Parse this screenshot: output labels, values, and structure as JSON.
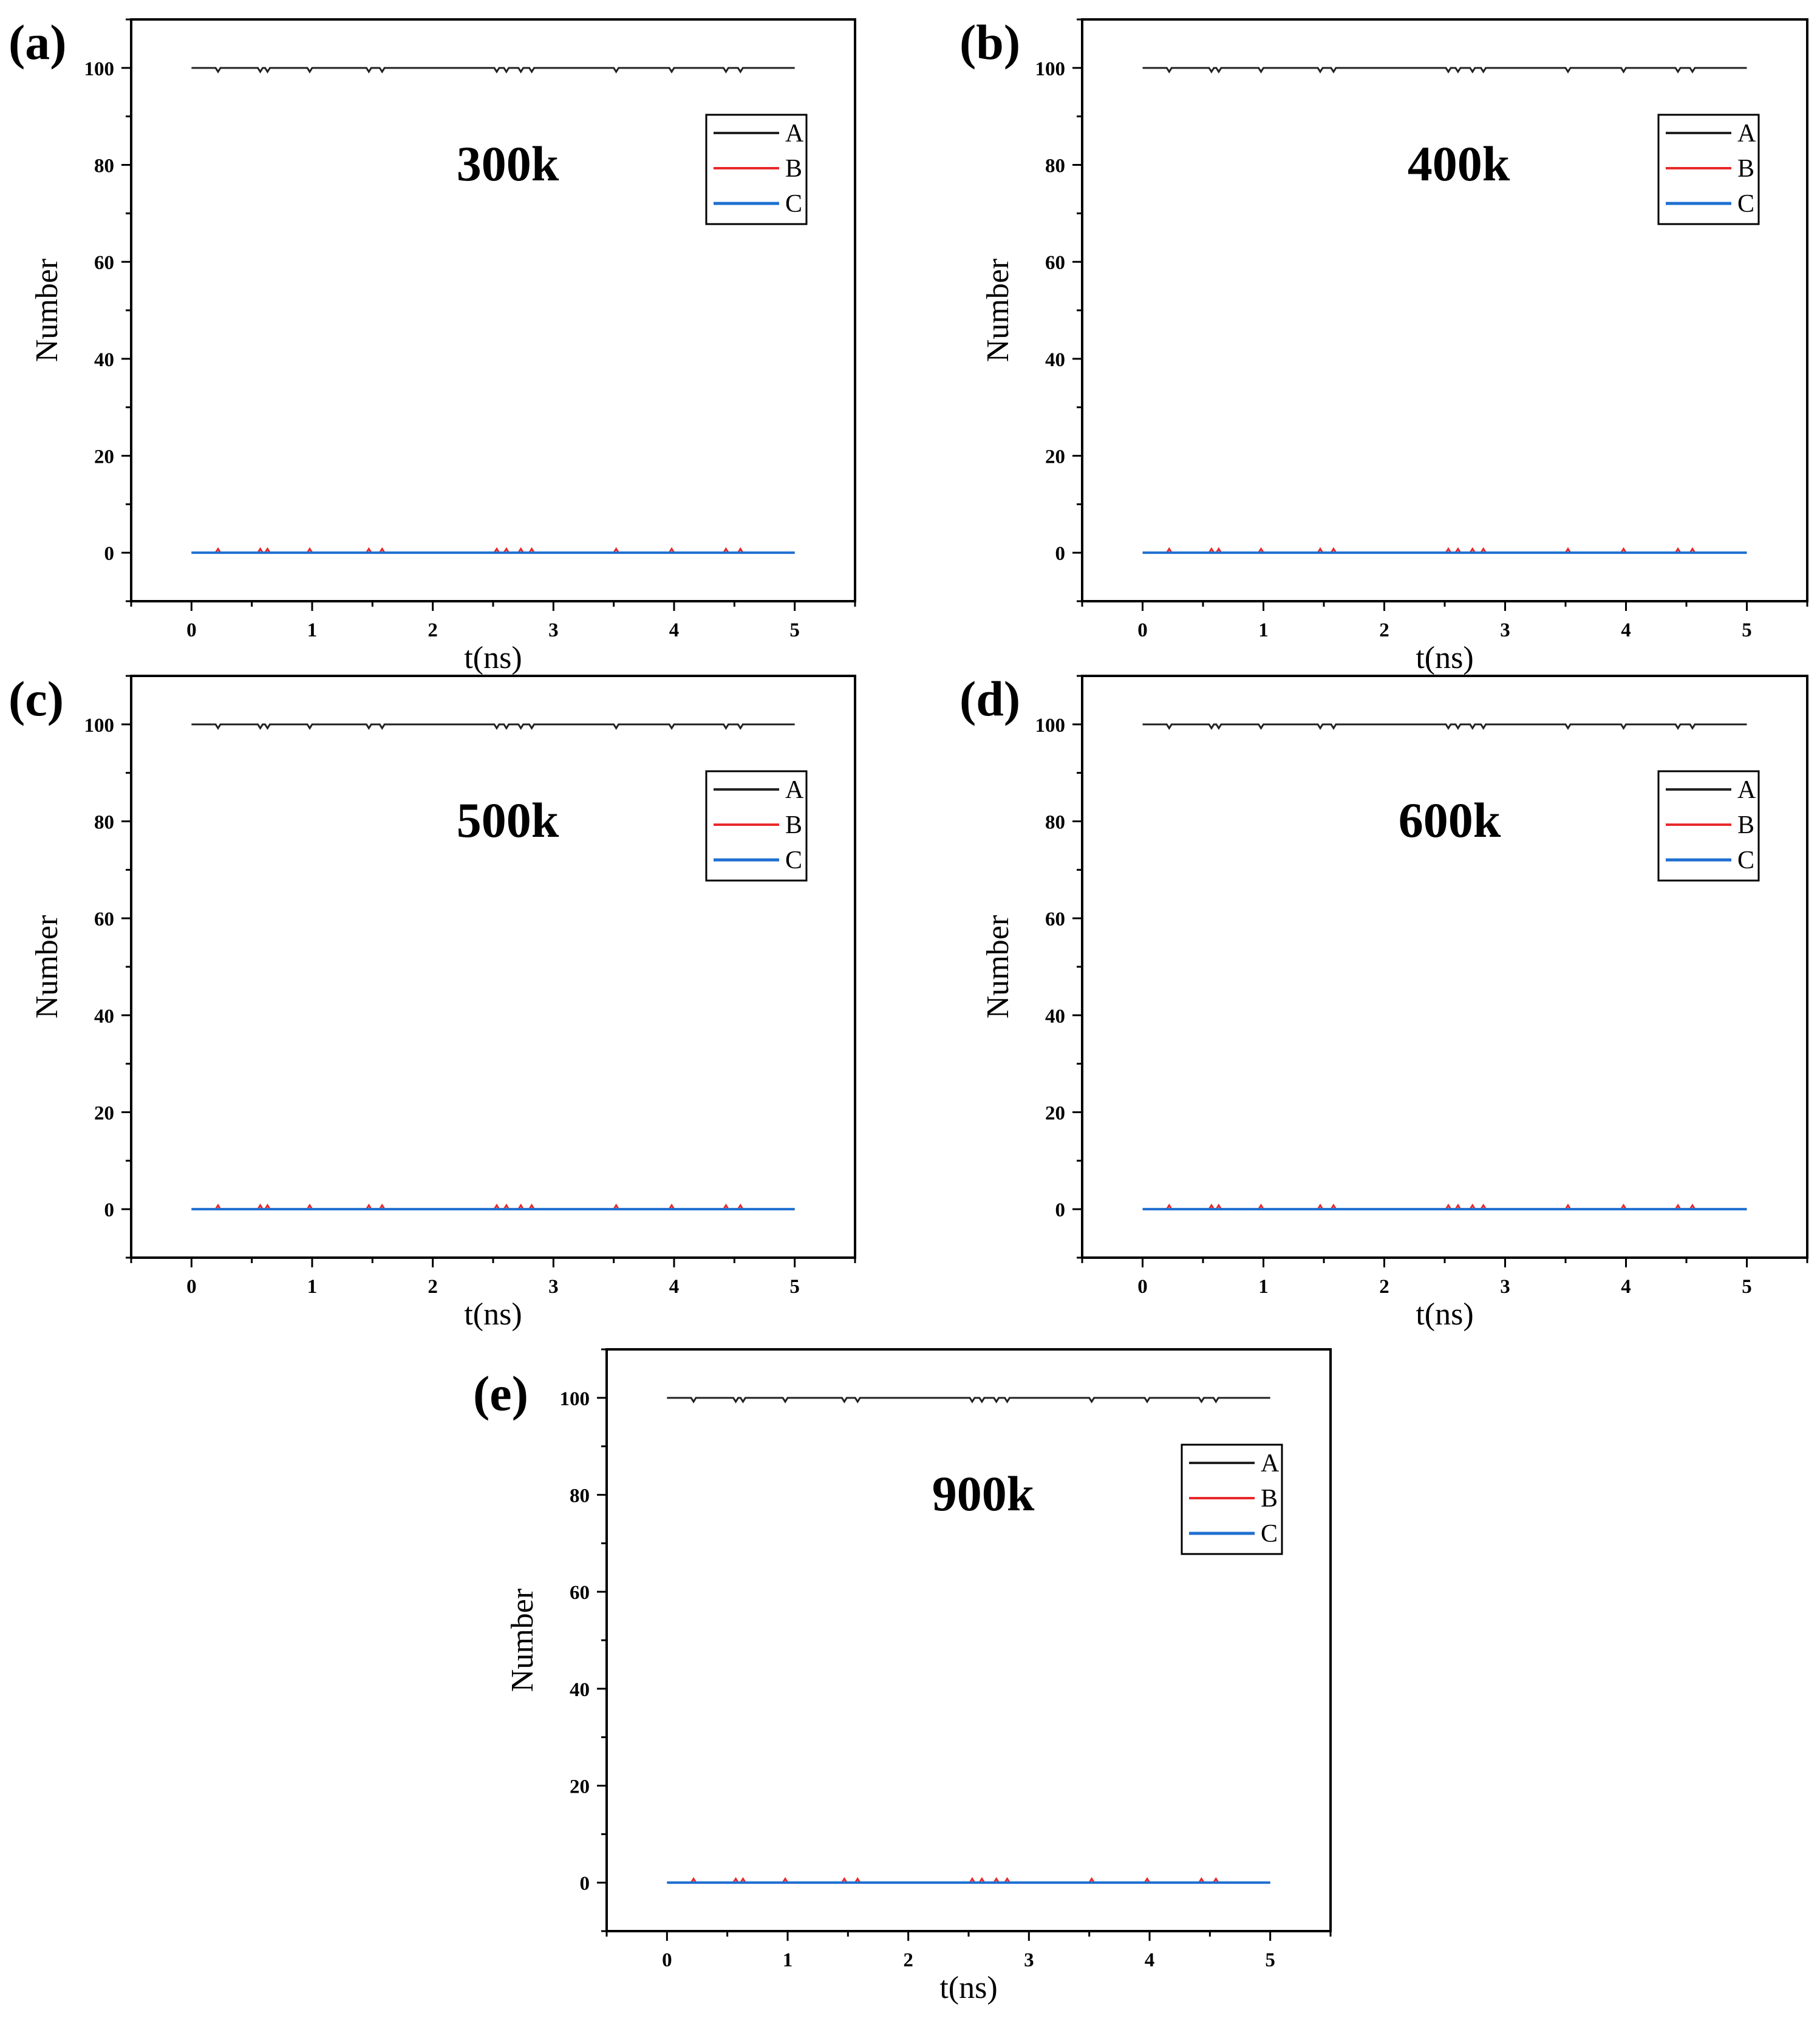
{
  "chart_data": [
    {
      "type": "line",
      "panel": "(a)",
      "annotation": "300k",
      "xlabel": "t(ns)",
      "ylabel": "Number",
      "xlim": [
        -0.5,
        5.5
      ],
      "ylim": [
        -10,
        110
      ],
      "xticks": [
        0,
        1,
        2,
        3,
        4,
        5
      ],
      "yticks": [
        0,
        20,
        40,
        60,
        80,
        100
      ],
      "legend": {
        "position": "top-right",
        "entries": [
          "A",
          "B",
          "C"
        ]
      },
      "series": [
        {
          "name": "A",
          "color": "#222222",
          "baseline": 100,
          "events": [
            0.22,
            0.57,
            0.63,
            0.98,
            1.47,
            1.58,
            2.53,
            2.61,
            2.73,
            2.82,
            3.52,
            3.98,
            4.43,
            4.55
          ],
          "deviation": -0.8
        },
        {
          "name": "B",
          "color": "#e8282a",
          "baseline": 0,
          "events": [
            0.22,
            0.57,
            0.63,
            0.98,
            1.47,
            1.58,
            2.53,
            2.61,
            2.73,
            2.82,
            3.52,
            3.98,
            4.43,
            4.55
          ],
          "deviation": 0.8
        },
        {
          "name": "C",
          "color": "#1f6fd1",
          "baseline": 0,
          "events": [],
          "deviation": 0
        }
      ]
    },
    {
      "type": "line",
      "panel": "(b)",
      "annotation": "400k",
      "xlabel": "t(ns)",
      "ylabel": "Number",
      "xlim": [
        -0.5,
        5.5
      ],
      "ylim": [
        -10,
        110
      ],
      "xticks": [
        0,
        1,
        2,
        3,
        4,
        5
      ],
      "yticks": [
        0,
        20,
        40,
        60,
        80,
        100
      ],
      "legend": {
        "position": "top-right",
        "entries": [
          "A",
          "B",
          "C"
        ]
      },
      "series": [
        {
          "name": "A",
          "color": "#222222",
          "baseline": 100,
          "events": [
            0.22,
            0.57,
            0.63,
            0.98,
            1.47,
            1.58,
            2.53,
            2.61,
            2.73,
            2.82,
            3.52,
            3.98,
            4.43,
            4.55
          ],
          "deviation": -0.8
        },
        {
          "name": "B",
          "color": "#e8282a",
          "baseline": 0,
          "events": [
            0.22,
            0.57,
            0.63,
            0.98,
            1.47,
            1.58,
            2.53,
            2.61,
            2.73,
            2.82,
            3.52,
            3.98,
            4.43,
            4.55
          ],
          "deviation": 0.8
        },
        {
          "name": "C",
          "color": "#1f6fd1",
          "baseline": 0,
          "events": [],
          "deviation": 0
        }
      ]
    },
    {
      "type": "line",
      "panel": "(c)",
      "annotation": "500k",
      "xlabel": "t(ns)",
      "ylabel": "Number",
      "xlim": [
        -0.5,
        5.5
      ],
      "ylim": [
        -10,
        110
      ],
      "xticks": [
        0,
        1,
        2,
        3,
        4,
        5
      ],
      "yticks": [
        0,
        20,
        40,
        60,
        80,
        100
      ],
      "legend": {
        "position": "top-right",
        "entries": [
          "A",
          "B",
          "C"
        ]
      },
      "series": [
        {
          "name": "A",
          "color": "#222222",
          "baseline": 100,
          "events": [
            0.22,
            0.57,
            0.63,
            0.98,
            1.47,
            1.58,
            2.53,
            2.61,
            2.73,
            2.82,
            3.52,
            3.98,
            4.43,
            4.55
          ],
          "deviation": -0.8
        },
        {
          "name": "B",
          "color": "#e8282a",
          "baseline": 0,
          "events": [
            0.22,
            0.57,
            0.63,
            0.98,
            1.47,
            1.58,
            2.53,
            2.61,
            2.73,
            2.82,
            3.52,
            3.98,
            4.43,
            4.55
          ],
          "deviation": 0.8
        },
        {
          "name": "C",
          "color": "#1f6fd1",
          "baseline": 0,
          "events": [],
          "deviation": 0
        }
      ]
    },
    {
      "type": "line",
      "panel": "(d)",
      "annotation": "600k",
      "xlabel": "t(ns)",
      "ylabel": "Number",
      "xlim": [
        -0.5,
        5.5
      ],
      "ylim": [
        -10,
        110
      ],
      "xticks": [
        0,
        1,
        2,
        3,
        4,
        5
      ],
      "yticks": [
        0,
        20,
        40,
        60,
        80,
        100
      ],
      "legend": {
        "position": "top-right",
        "entries": [
          "A",
          "B",
          "C"
        ]
      },
      "series": [
        {
          "name": "A",
          "color": "#222222",
          "baseline": 100,
          "events": [
            0.22,
            0.57,
            0.63,
            0.98,
            1.47,
            1.58,
            2.53,
            2.61,
            2.73,
            2.82,
            3.52,
            3.98,
            4.43,
            4.55
          ],
          "deviation": -0.8
        },
        {
          "name": "B",
          "color": "#e8282a",
          "baseline": 0,
          "events": [
            0.22,
            0.57,
            0.63,
            0.98,
            1.47,
            1.58,
            2.53,
            2.61,
            2.73,
            2.82,
            3.52,
            3.98,
            4.43,
            4.55
          ],
          "deviation": 0.8
        },
        {
          "name": "C",
          "color": "#1f6fd1",
          "baseline": 0,
          "events": [],
          "deviation": 0
        }
      ]
    },
    {
      "type": "line",
      "panel": "(e)",
      "annotation": "900k",
      "xlabel": "t(ns)",
      "ylabel": "Number",
      "xlim": [
        -0.5,
        5.5
      ],
      "ylim": [
        -10,
        110
      ],
      "xticks": [
        0,
        1,
        2,
        3,
        4,
        5
      ],
      "yticks": [
        0,
        20,
        40,
        60,
        80,
        100
      ],
      "legend": {
        "position": "top-right",
        "entries": [
          "A",
          "B",
          "C"
        ]
      },
      "series": [
        {
          "name": "A",
          "color": "#222222",
          "baseline": 100,
          "events": [
            0.22,
            0.57,
            0.63,
            0.98,
            1.47,
            1.58,
            2.53,
            2.61,
            2.73,
            2.82,
            3.52,
            3.98,
            4.43,
            4.55
          ],
          "deviation": -0.8
        },
        {
          "name": "B",
          "color": "#e8282a",
          "baseline": 0,
          "events": [
            0.22,
            0.57,
            0.63,
            0.98,
            1.47,
            1.58,
            2.53,
            2.61,
            2.73,
            2.82,
            3.52,
            3.98,
            4.43,
            4.55
          ],
          "deviation": 0.8
        },
        {
          "name": "C",
          "color": "#1f6fd1",
          "baseline": 0,
          "events": [],
          "deviation": 0
        }
      ]
    }
  ]
}
